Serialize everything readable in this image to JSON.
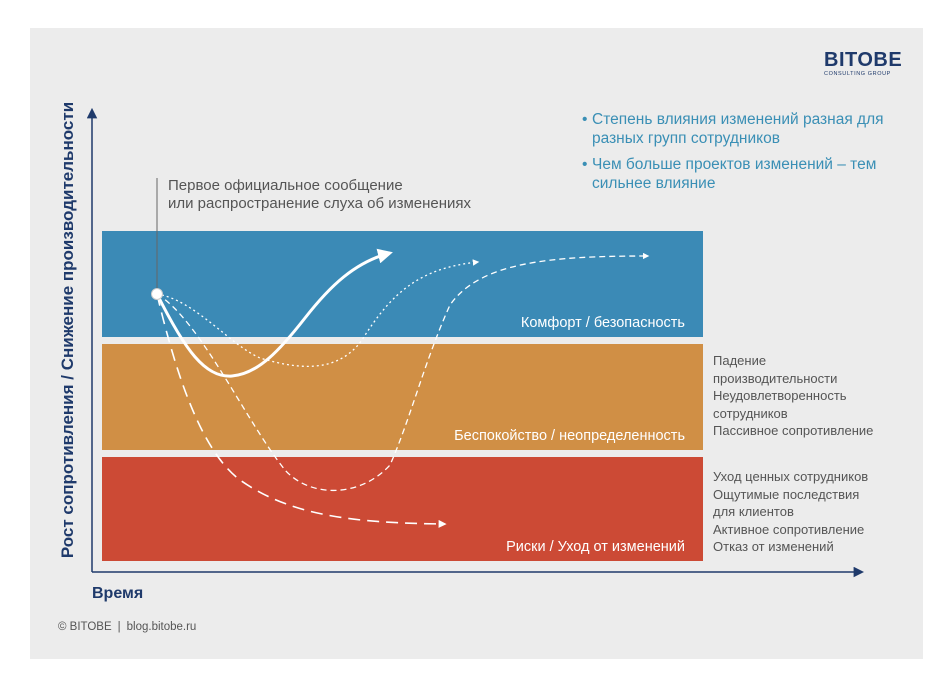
{
  "logo": {
    "main": "BITOBE",
    "sub": "CONSULTING GROUP"
  },
  "bullets": [
    "Степень влияния изменений разная для разных групп сотрудников",
    "Чем больше проектов изменений – тем сильнее влияние"
  ],
  "annotation": {
    "line1": "Первое официальное сообщение",
    "line2": "или распространение слуха об изменениях"
  },
  "zones": {
    "comfort": {
      "label": "Комфорт / безопасность",
      "color": "#3b8ab6"
    },
    "anxiety": {
      "label": "Беспокойство / неопределенность",
      "color": "#d08f45"
    },
    "risk": {
      "label": "Риски / Уход от изменений",
      "color": "#cc4a35"
    }
  },
  "side_notes": {
    "anxiety": [
      "Падение",
      "производительности",
      "Неудовлетворенность",
      "сотрудников",
      "Пассивное сопротивление"
    ],
    "risk": [
      "Уход ценных сотрудников",
      "Ощутимые последствия",
      "для клиентов",
      "Активное сопротивление",
      "Отказ от изменений"
    ]
  },
  "axes": {
    "y_label": "Рост сопротивления / Снижение производительности",
    "x_label": "Время"
  },
  "footer": {
    "copyright": "© BITOBE",
    "site": "blog.bitobe.ru"
  },
  "colors": {
    "axis": "#1f3a6b",
    "bullet_text": "#3a8fb5"
  }
}
